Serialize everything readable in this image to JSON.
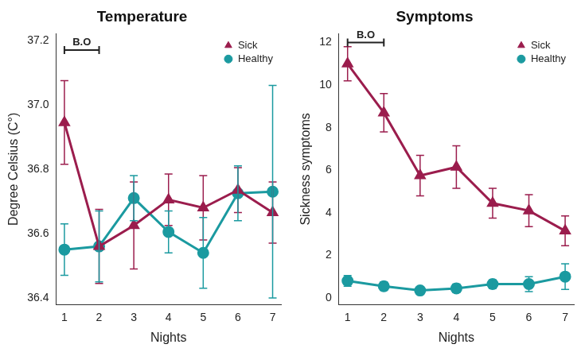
{
  "chart_data": [
    {
      "type": "line",
      "title": "Temperature",
      "x_label": "Nights",
      "y_label": "Degree Celsius (C°)",
      "x": [
        1,
        2,
        3,
        4,
        5,
        6,
        7
      ],
      "series": [
        {
          "name": "Sick",
          "color": "#9b1d4d",
          "marker": "triangle",
          "line_style": "solid",
          "values": [
            36.945,
            36.56,
            36.625,
            36.705,
            36.68,
            36.735,
            36.665
          ],
          "errors": [
            0.13,
            0.115,
            0.135,
            0.08,
            0.1,
            0.07,
            0.095
          ]
        },
        {
          "name": "Healthy",
          "color": "#1b9aa0",
          "marker": "circle",
          "line_style": "solid",
          "values": [
            36.55,
            36.56,
            36.71,
            36.605,
            36.54,
            36.725,
            36.73
          ],
          "errors": [
            0.08,
            0.11,
            0.07,
            0.065,
            0.11,
            0.085,
            0.33
          ]
        }
      ],
      "xlim": [
        0.76,
        7.24
      ],
      "xticks": [
        1,
        2,
        3,
        4,
        5,
        6,
        7
      ],
      "ylim": [
        36.38,
        37.22
      ],
      "yticks": [
        36.4,
        36.6,
        36.8,
        {
          "value": 37,
          "label": "37.0"
        },
        37.2
      ],
      "grid": false,
      "legend": "top-right",
      "annotations": [
        {
          "text": "B.O",
          "x": [
            1,
            2
          ],
          "y": 37.17
        }
      ]
    },
    {
      "type": "line",
      "title": "Symptoms",
      "x_label": "Nights",
      "y_label": "Sickness symptoms",
      "x": [
        1,
        2,
        3,
        4,
        5,
        6,
        7
      ],
      "series": [
        {
          "name": "Sick",
          "color": "#9b1d4d",
          "marker": "triangle",
          "line_style": "solid",
          "values": [
            11.0,
            8.7,
            5.75,
            6.15,
            4.45,
            4.1,
            3.15
          ],
          "errors": [
            0.8,
            0.9,
            0.95,
            1.0,
            0.7,
            0.75,
            0.7
          ]
        },
        {
          "name": "Healthy",
          "color": "#1b9aa0",
          "marker": "circle",
          "line_style": "solid",
          "values": [
            0.8,
            0.55,
            0.35,
            0.45,
            0.65,
            0.65,
            1.0
          ],
          "errors": [
            0.25,
            0.2,
            0.1,
            0.2,
            0.2,
            0.35,
            0.6
          ]
        }
      ],
      "xlim": [
        0.76,
        7.24
      ],
      "xticks": [
        1,
        2,
        3,
        4,
        5,
        6,
        7
      ],
      "ylim": [
        -0.3,
        12.4
      ],
      "yticks": [
        0,
        2,
        4,
        6,
        8,
        10,
        12
      ],
      "grid": false,
      "legend": "top-right",
      "annotations": [
        {
          "text": "B.O",
          "x": [
            1,
            2
          ],
          "y": 12.0
        }
      ]
    }
  ]
}
